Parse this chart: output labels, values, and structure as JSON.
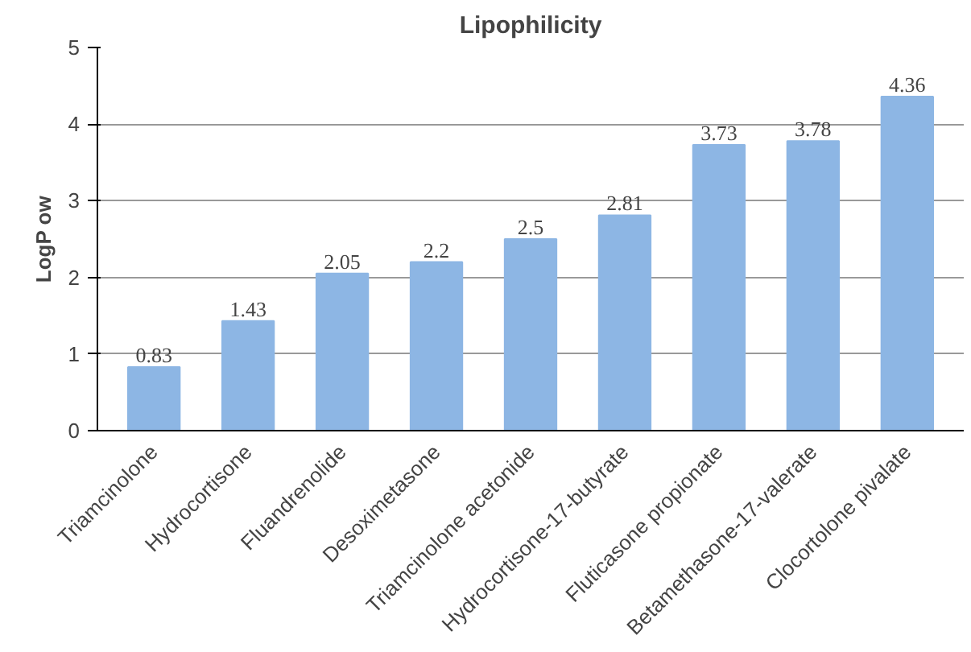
{
  "chart_data": {
    "type": "bar",
    "title": "Lipophilicity",
    "ylabel": "LogP ow",
    "categories": [
      "Triamcinolone",
      "Hydrocortisone",
      "Fluandrenolide",
      "Desoximetasone",
      "Triamcinolone acetonide",
      "Hydrocortisone-17-butyrate",
      "Fluticasone propionate",
      "Betamethasone-17-valerate",
      "Clocortolone pivalate"
    ],
    "values": [
      0.83,
      1.43,
      2.05,
      2.2,
      2.5,
      2.81,
      3.73,
      3.78,
      4.36
    ],
    "color": "#8db6e4",
    "ylim": [
      0,
      5
    ],
    "yticks": [
      0,
      1,
      2,
      3,
      4,
      5
    ],
    "grid": "y",
    "data_labels": true
  }
}
